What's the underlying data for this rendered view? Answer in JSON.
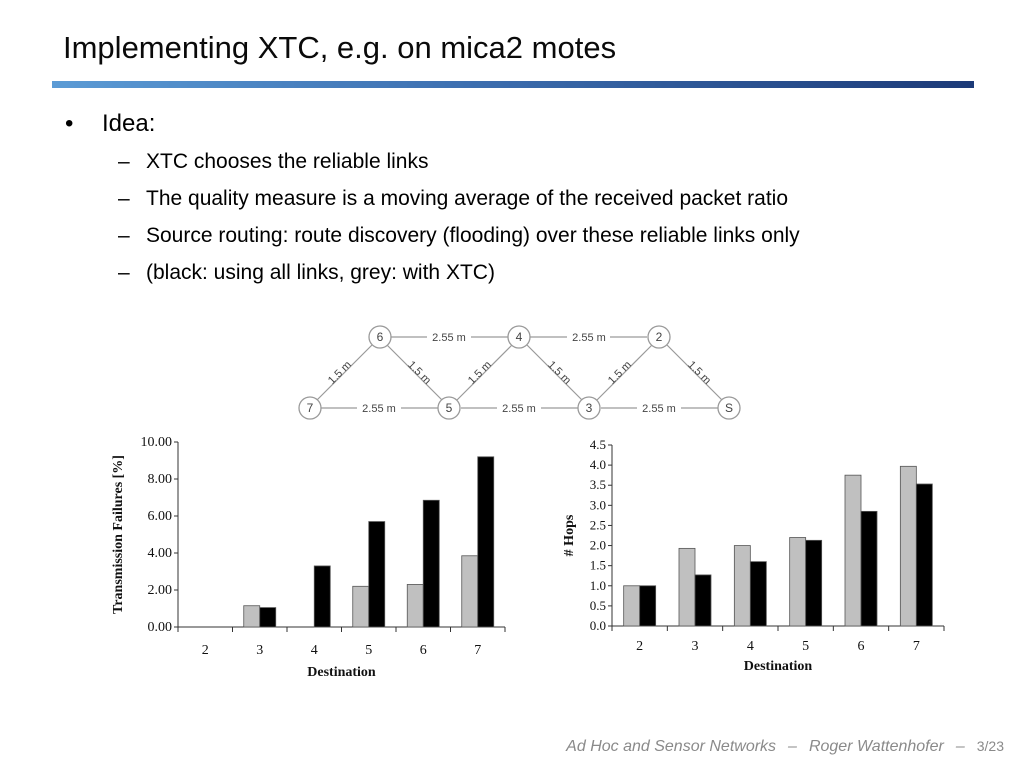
{
  "slide": {
    "title": "Implementing XTC, e.g. on mica2 motes",
    "bullet": {
      "mark": "•",
      "text": "Idea:"
    },
    "sub_mark": "–",
    "sub_bullets": [
      "XTC chooses the reliable links",
      "The quality measure is a moving average of the received packet ratio",
      "Source routing: route discovery (flooding) over these reliable links only",
      "(black: using all links, grey: with XTC)"
    ]
  },
  "network": {
    "nodes": [
      "6",
      "4",
      "2",
      "7",
      "5",
      "3",
      "S"
    ],
    "edge_labels": {
      "horizontal": "2.55 m",
      "diagonal": "1.5 m"
    }
  },
  "chart_data": [
    {
      "type": "bar",
      "title": "",
      "xlabel": "Destination",
      "ylabel": "Transmission Failures [%]",
      "ylim": [
        0,
        10
      ],
      "y_ticks": [
        "0.00",
        "2.00",
        "4.00",
        "6.00",
        "8.00",
        "10.00"
      ],
      "categories": [
        "2",
        "3",
        "4",
        "5",
        "6",
        "7"
      ],
      "series": [
        {
          "color": "#c0c0c0",
          "values": [
            0,
            1.15,
            0,
            2.2,
            2.3,
            3.85
          ]
        },
        {
          "color": "#000000",
          "values": [
            0,
            1.05,
            3.3,
            5.7,
            6.85,
            9.2
          ]
        }
      ],
      "grid": false
    },
    {
      "type": "bar",
      "title": "",
      "xlabel": "Destination",
      "ylabel": "# Hops",
      "ylim": [
        0,
        4.5
      ],
      "y_ticks": [
        "0.0",
        "0.5",
        "1.0",
        "1.5",
        "2.0",
        "2.5",
        "3.0",
        "3.5",
        "4.0",
        "4.5"
      ],
      "categories": [
        "2",
        "3",
        "4",
        "5",
        "6",
        "7"
      ],
      "series": [
        {
          "color": "#c0c0c0",
          "values": [
            1.0,
            1.93,
            2.0,
            2.2,
            3.75,
            3.97
          ]
        },
        {
          "color": "#000000",
          "values": [
            1.0,
            1.27,
            1.6,
            2.13,
            2.85,
            3.53
          ]
        }
      ],
      "grid": false
    }
  ],
  "footer": {
    "course": "Ad Hoc and Sensor Networks",
    "separator": "–",
    "author": "Roger Wattenhofer",
    "page": "3/23"
  }
}
